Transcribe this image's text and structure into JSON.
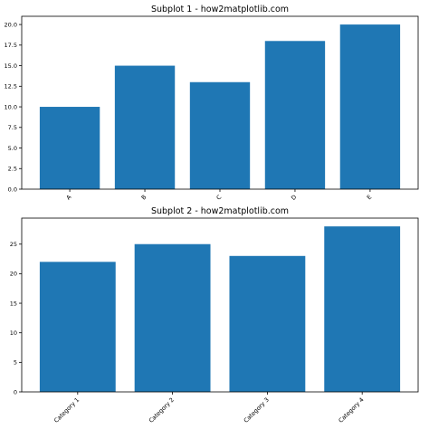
{
  "chart_data": [
    {
      "type": "bar",
      "title": "Subplot 1 - how2matplotlib.com",
      "categories": [
        "A",
        "B",
        "C",
        "D",
        "E"
      ],
      "values": [
        10,
        15,
        13,
        18,
        20
      ],
      "ylim": [
        0,
        21
      ],
      "yticks": [
        0.0,
        2.5,
        5.0,
        7.5,
        10.0,
        12.5,
        15.0,
        17.5,
        20.0
      ],
      "ytick_labels": [
        "0.0",
        "2.5",
        "5.0",
        "7.5",
        "10.0",
        "12.5",
        "15.0",
        "17.5",
        "20.0"
      ],
      "bar_color": "#1f77b4",
      "xtick_rotation": 45,
      "grid": false
    },
    {
      "type": "bar",
      "title": "Subplot 2 - how2matplotlib.com",
      "categories": [
        "Category 1",
        "Category 2",
        "Category 3",
        "Category 4"
      ],
      "values": [
        22,
        25,
        23,
        28
      ],
      "ylim": [
        0,
        29.4
      ],
      "yticks": [
        0,
        5,
        10,
        15,
        20,
        25
      ],
      "ytick_labels": [
        "0",
        "5",
        "10",
        "15",
        "20",
        "25"
      ],
      "bar_color": "#1f77b4",
      "xtick_rotation": 45,
      "grid": false
    }
  ]
}
